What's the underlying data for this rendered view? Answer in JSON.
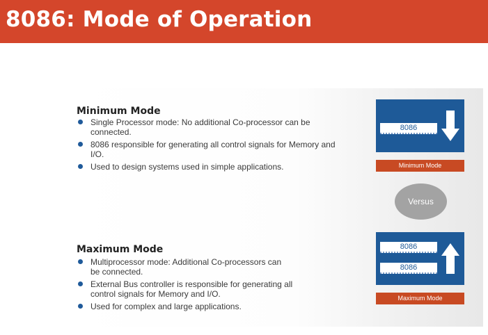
{
  "header": {
    "title": "8086: Mode of Operation"
  },
  "minimum": {
    "heading": "Minimum Mode",
    "bullets": [
      "Single Processor mode: No additional Co-processor can be connected.",
      "8086 responsible for generating all control signals for Memory and I/O.",
      "Used to design systems used in simple applications."
    ],
    "chip": "8086",
    "label": "Minimum Mode"
  },
  "versus": "Versus",
  "maximum": {
    "heading": "Maximum Mode",
    "bullets": [
      "Multiprocessor mode: Additional Co-processors can be connected.",
      "External Bus controller is responsible for generating all control signals for Memory and I/O.",
      "Used for complex and large applications."
    ],
    "chips": [
      "8086",
      "8086"
    ],
    "label": "Maximum Mode"
  },
  "colors": {
    "header_bg": "#d4462b",
    "box_blue": "#1e5a98",
    "label_orange": "#c84a23",
    "versus_gray": "#a3a3a3"
  },
  "icons": [
    "down-arrow-icon",
    "up-arrow-icon",
    "bullet-icon"
  ]
}
